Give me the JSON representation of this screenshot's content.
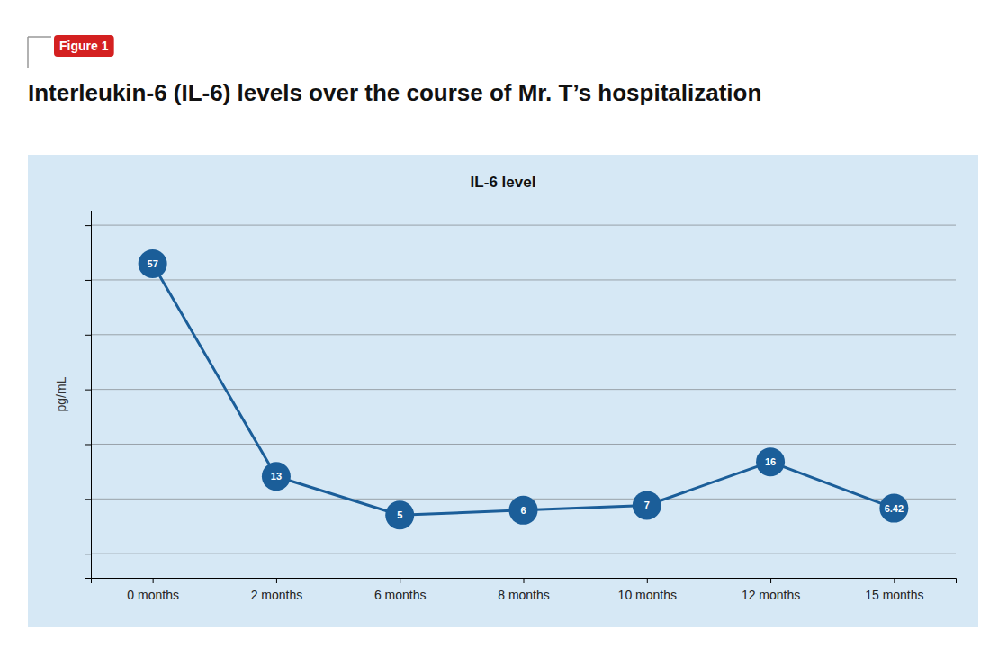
{
  "chart_data": {
    "type": "line",
    "title": "Interleukin-6 (IL-6) levels over the course of Mr. T’s hospitalization",
    "subtitle": "IL-6 level",
    "annotations": [
      "Figure 1"
    ],
    "y_label": "pg/mL",
    "categories": [
      "0 months",
      "2 months",
      "6 months",
      "8 months",
      "10 months",
      "12 months",
      "15 months"
    ],
    "values": [
      57,
      13,
      5,
      6,
      7,
      16,
      6.42
    ],
    "color": "#1b5e99",
    "marker": "circle",
    "ylim": [
      -8,
      68
    ],
    "yticks": [
      -3,
      8.333333333333334,
      19.666666666666668,
      31,
      42.33333333333333,
      53.666666666666664,
      65
    ],
    "grid": true,
    "tick_labels": "x",
    "data_labels": true
  }
}
